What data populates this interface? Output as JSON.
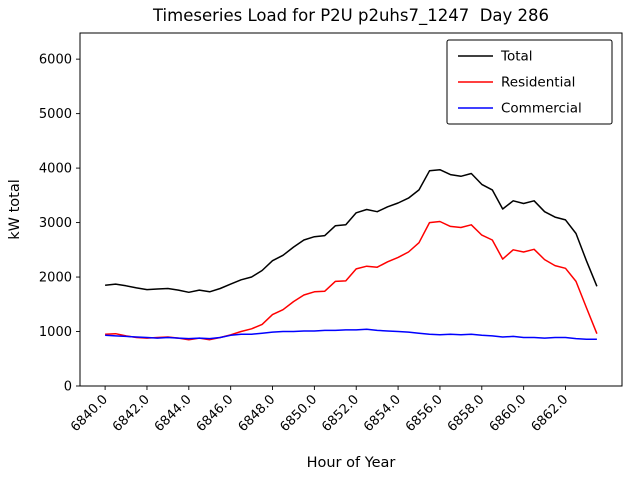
{
  "figure": {
    "background": "#ffffff"
  },
  "chart_data": {
    "type": "line",
    "title": "Timeseries Load for P2U p2uhs7_1247  Day 286",
    "xlabel": "Hour of Year",
    "ylabel": "kW total",
    "grid": false,
    "legend_position": "upper right",
    "x_start": 6840.0,
    "x_step": 0.5,
    "xlim": [
      6838.8,
      6864.7
    ],
    "ylim": [
      0,
      6480
    ],
    "xticks": [
      6840.0,
      6842.0,
      6844.0,
      6846.0,
      6848.0,
      6850.0,
      6852.0,
      6854.0,
      6856.0,
      6858.0,
      6860.0,
      6862.0
    ],
    "xtick_labels": [
      "6840.0",
      "6842.0",
      "6844.0",
      "6846.0",
      "6848.0",
      "6850.0",
      "6852.0",
      "6854.0",
      "6856.0",
      "6858.0",
      "6860.0",
      "6862.0"
    ],
    "yticks": [
      0,
      1000,
      2000,
      3000,
      4000,
      5000,
      6000
    ],
    "ytick_labels": [
      "0",
      "1000",
      "2000",
      "3000",
      "4000",
      "5000",
      "6000"
    ],
    "series": [
      {
        "name": "Total",
        "color": "#000000",
        "values": [
          1850,
          1870,
          1840,
          1800,
          1770,
          1780,
          1790,
          1760,
          1720,
          1760,
          1730,
          1790,
          1870,
          1950,
          2000,
          2120,
          2300,
          2400,
          2550,
          2680,
          2740,
          2760,
          2940,
          2960,
          3180,
          3240,
          3200,
          3290,
          3360,
          3450,
          3600,
          3950,
          3970,
          3880,
          3850,
          3900,
          3700,
          3600,
          3250,
          3400,
          3350,
          3400,
          3200,
          3100,
          3050,
          2800,
          2300,
          1830
        ]
      },
      {
        "name": "Residential",
        "color": "#ff0000",
        "values": [
          950,
          960,
          920,
          890,
          880,
          890,
          900,
          880,
          850,
          880,
          850,
          890,
          940,
          1000,
          1050,
          1130,
          1310,
          1400,
          1550,
          1670,
          1730,
          1740,
          1920,
          1930,
          2150,
          2200,
          2180,
          2280,
          2360,
          2460,
          2630,
          3000,
          3020,
          2930,
          2910,
          2960,
          2770,
          2680,
          2330,
          2500,
          2460,
          2510,
          2320,
          2210,
          2160,
          1920,
          1440,
          960
        ]
      },
      {
        "name": "Commercial",
        "color": "#0000ff",
        "values": [
          930,
          920,
          910,
          900,
          890,
          880,
          890,
          880,
          870,
          880,
          870,
          890,
          930,
          950,
          950,
          970,
          990,
          1000,
          1000,
          1010,
          1010,
          1020,
          1020,
          1030,
          1030,
          1040,
          1020,
          1010,
          1000,
          990,
          970,
          950,
          940,
          950,
          940,
          950,
          930,
          920,
          900,
          910,
          890,
          890,
          880,
          890,
          890,
          870,
          860,
          860
        ]
      }
    ]
  }
}
